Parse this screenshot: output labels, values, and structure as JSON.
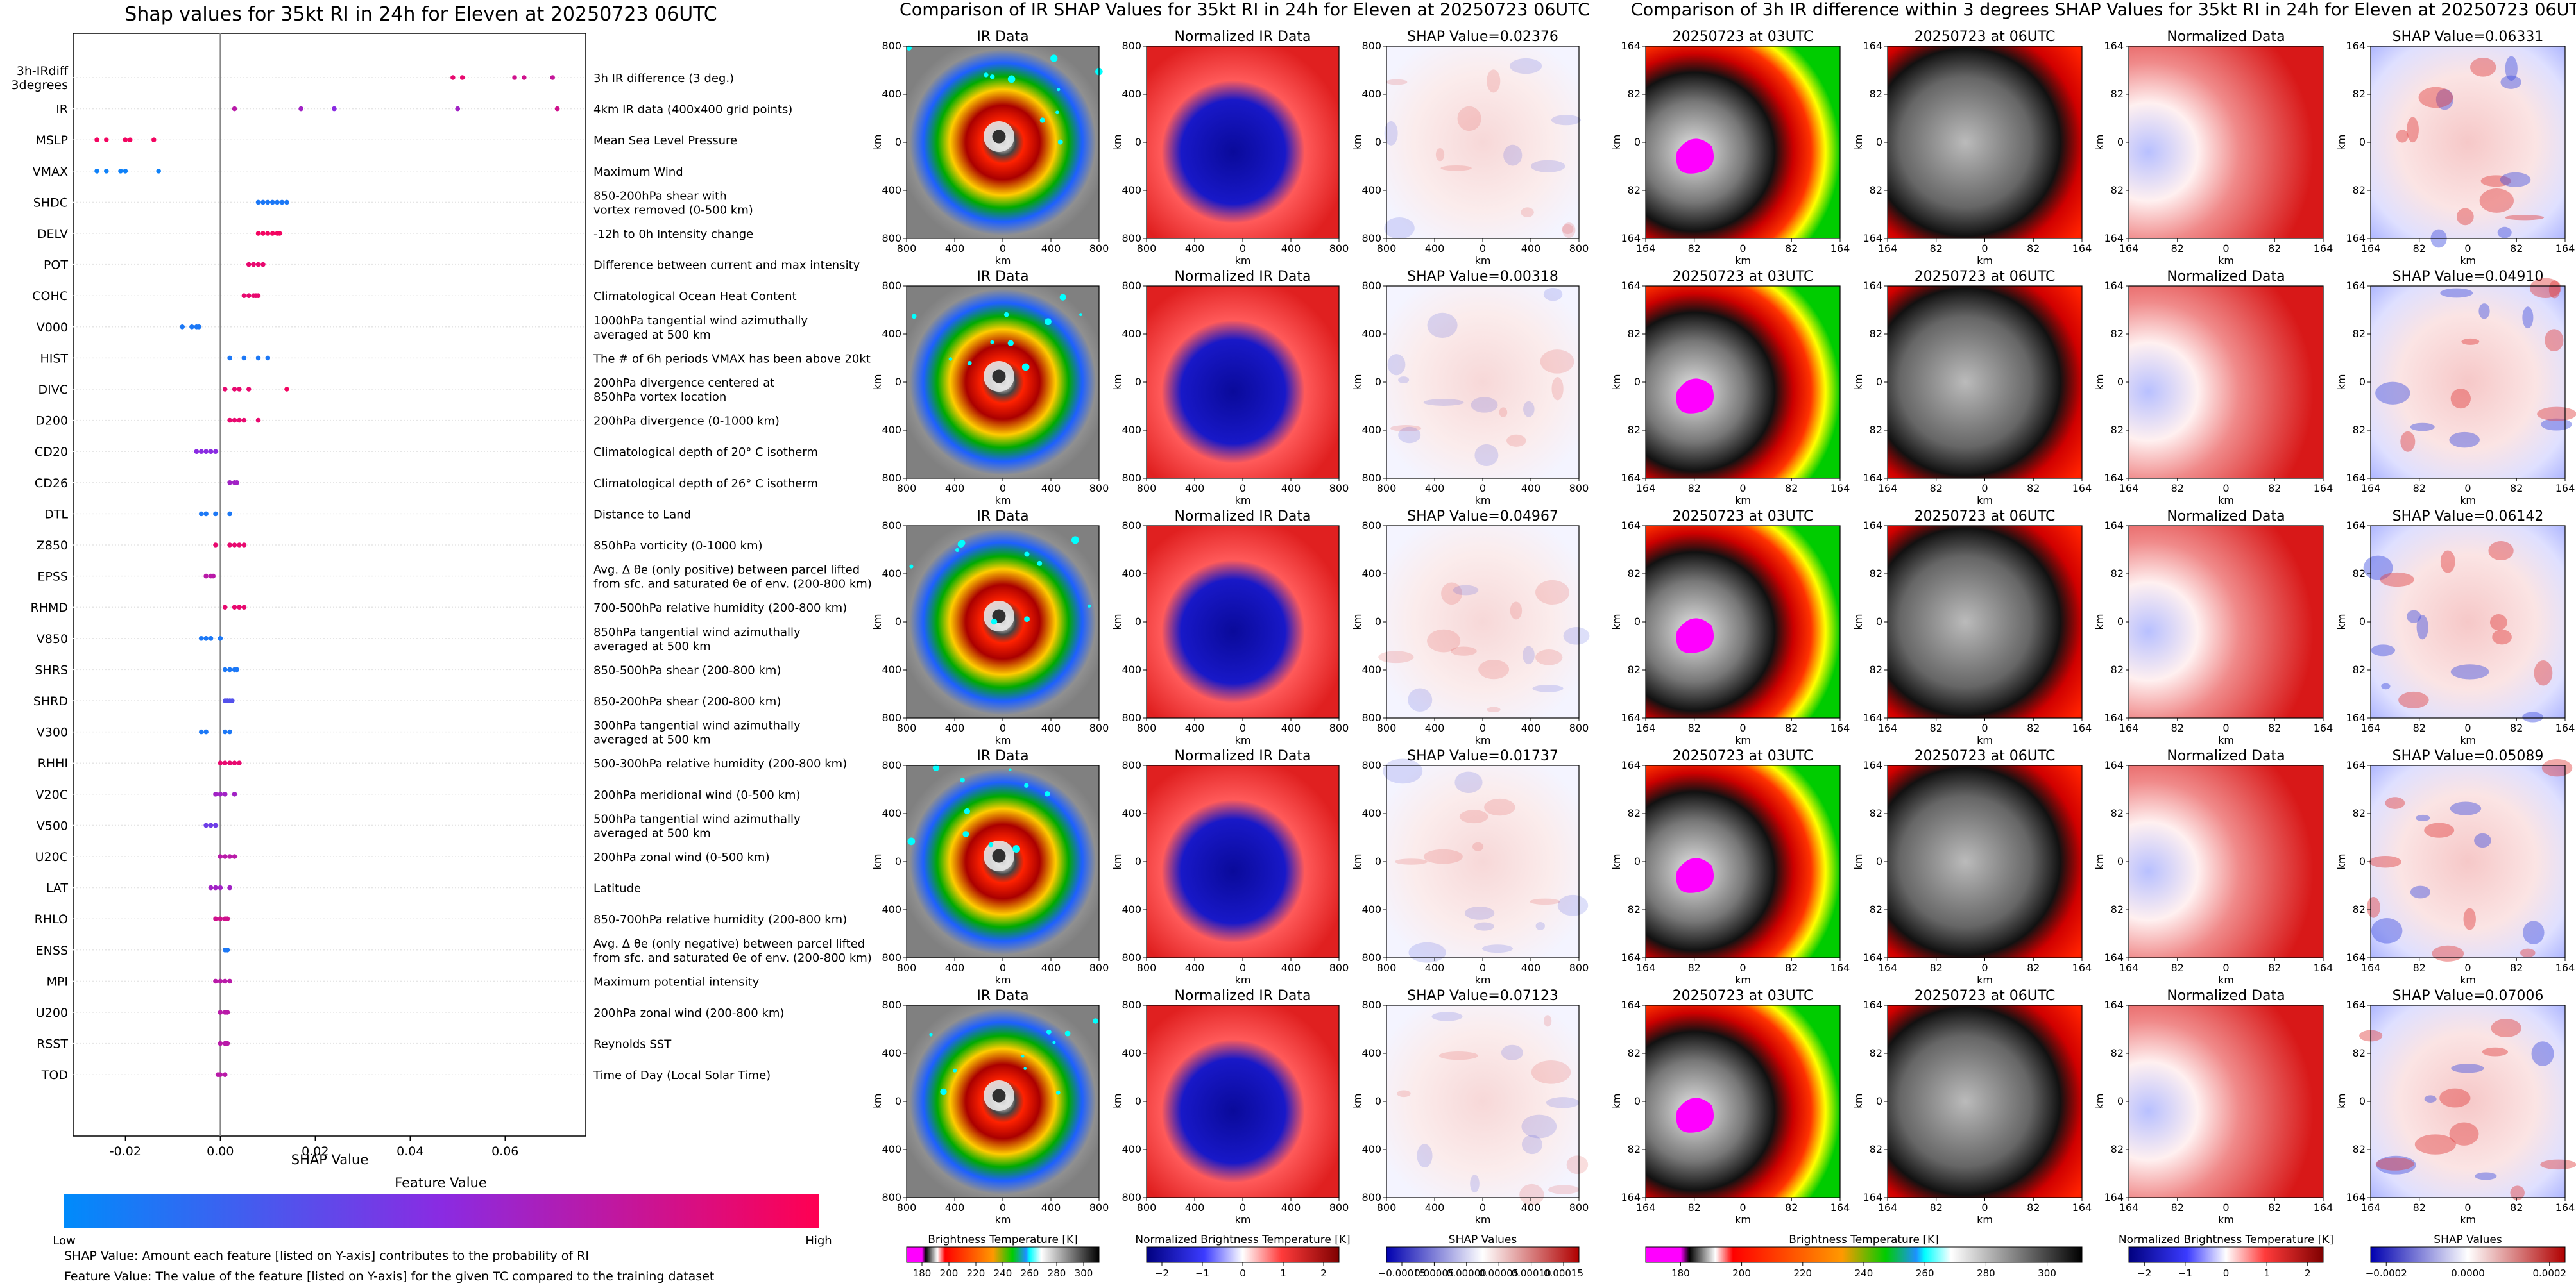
{
  "colors": {
    "low": "#008bfb",
    "high": "#ff0052",
    "mid": "#8a2be2",
    "map_white": "#ffffff",
    "map_red": "#d6201f",
    "map_blue": "#1a1ab8",
    "ir_gray": "#9a9a9a",
    "ir_magenta": "#ff00ff"
  },
  "figure_a": {
    "title": "Shap values for 35kt RI in 24h for Eleven at 20250723 06UTC",
    "xlabel": "SHAP Value",
    "colorbar_title": "Feature Value",
    "colorbar_low": "Low",
    "colorbar_high": "High",
    "note1": "SHAP Value: Amount each feature [listed on Y-axis] contributes to the probability of RI",
    "note2": "Feature Value: The value of the feature [listed on Y-axis] for the given TC compared to the training dataset"
  },
  "chart_data": {
    "type": "scatter",
    "title": "Shap values for 35kt RI in 24h for Eleven at 20250723 06UTC",
    "xlabel": "SHAP Value",
    "xlim": [
      -0.031,
      0.077
    ],
    "xticks": [
      "-0.02",
      "0.00",
      "0.02",
      "0.04",
      "0.06"
    ],
    "xtick_values": [
      -0.02,
      0.0,
      0.02,
      0.04,
      0.06
    ],
    "features": [
      {
        "code": [
          "3h-IRdiff",
          "3degrees"
        ],
        "desc": [
          "3h IR difference (3 deg.)"
        ],
        "points": [
          [
            0.049,
            0.9
          ],
          [
            0.051,
            0.9
          ],
          [
            0.062,
            0.8
          ],
          [
            0.064,
            0.8
          ],
          [
            0.07,
            0.75
          ]
        ]
      },
      {
        "code": [
          "IR"
        ],
        "desc": [
          "4km IR data (400x400 grid points)"
        ],
        "points": [
          [
            0.003,
            0.7
          ],
          [
            0.017,
            0.6
          ],
          [
            0.024,
            0.5
          ],
          [
            0.05,
            0.6
          ],
          [
            0.071,
            0.8
          ]
        ]
      },
      {
        "code": [
          "MSLP"
        ],
        "desc": [
          "Mean Sea Level Pressure"
        ],
        "points": [
          [
            -0.026,
            0.95
          ],
          [
            -0.024,
            0.95
          ],
          [
            -0.02,
            0.95
          ],
          [
            -0.019,
            0.95
          ],
          [
            -0.014,
            0.95
          ]
        ]
      },
      {
        "code": [
          "VMAX"
        ],
        "desc": [
          "Maximum Wind"
        ],
        "points": [
          [
            -0.026,
            0.05
          ],
          [
            -0.024,
            0.05
          ],
          [
            -0.021,
            0.05
          ],
          [
            -0.02,
            0.05
          ],
          [
            -0.013,
            0.05
          ]
        ]
      },
      {
        "code": [
          "SHDC"
        ],
        "desc": [
          "850-200hPa shear with",
          "vortex removed (0-500 km)"
        ],
        "points": [
          [
            0.008,
            0.1
          ],
          [
            0.009,
            0.1
          ],
          [
            0.01,
            0.1
          ],
          [
            0.011,
            0.1
          ],
          [
            0.012,
            0.1
          ],
          [
            0.013,
            0.1
          ],
          [
            0.014,
            0.1
          ]
        ]
      },
      {
        "code": [
          "DELV"
        ],
        "desc": [
          "-12h to 0h Intensity change"
        ],
        "points": [
          [
            0.008,
            0.95
          ],
          [
            0.009,
            0.95
          ],
          [
            0.01,
            0.95
          ],
          [
            0.011,
            0.95
          ],
          [
            0.012,
            0.95
          ],
          [
            0.0125,
            0.95
          ]
        ]
      },
      {
        "code": [
          "POT"
        ],
        "desc": [
          "Difference between current and max intensity"
        ],
        "points": [
          [
            0.006,
            0.9
          ],
          [
            0.007,
            0.9
          ],
          [
            0.008,
            0.9
          ],
          [
            0.009,
            0.9
          ]
        ]
      },
      {
        "code": [
          "COHC"
        ],
        "desc": [
          "Climatological Ocean Heat Content"
        ],
        "points": [
          [
            0.005,
            0.9
          ],
          [
            0.006,
            0.9
          ],
          [
            0.007,
            0.9
          ],
          [
            0.0075,
            0.9
          ],
          [
            0.008,
            0.9
          ]
        ]
      },
      {
        "code": [
          "V000"
        ],
        "desc": [
          "1000hPa tangential wind azimuthally",
          "averaged at 500 km"
        ],
        "points": [
          [
            -0.008,
            0.1
          ],
          [
            -0.006,
            0.1
          ],
          [
            -0.005,
            0.1
          ],
          [
            -0.0045,
            0.1
          ]
        ]
      },
      {
        "code": [
          "HIST"
        ],
        "desc": [
          "The # of 6h periods VMAX has been above 20kt"
        ],
        "points": [
          [
            0.002,
            0.1
          ],
          [
            0.005,
            0.1
          ],
          [
            0.008,
            0.1
          ],
          [
            0.01,
            0.1
          ]
        ]
      },
      {
        "code": [
          "DIVC"
        ],
        "desc": [
          "200hPa divergence centered at",
          "850hPa vortex location"
        ],
        "points": [
          [
            0.001,
            0.9
          ],
          [
            0.003,
            0.9
          ],
          [
            0.004,
            0.9
          ],
          [
            0.006,
            0.9
          ],
          [
            0.014,
            0.95
          ]
        ]
      },
      {
        "code": [
          "D200"
        ],
        "desc": [
          "200hPa divergence (0-1000 km)"
        ],
        "points": [
          [
            0.002,
            0.9
          ],
          [
            0.003,
            0.9
          ],
          [
            0.004,
            0.9
          ],
          [
            0.005,
            0.9
          ],
          [
            0.008,
            0.9
          ]
        ]
      },
      {
        "code": [
          "CD20"
        ],
        "desc": [
          "Climatological depth of 20° C isotherm"
        ],
        "points": [
          [
            -0.005,
            0.5
          ],
          [
            -0.004,
            0.5
          ],
          [
            -0.003,
            0.5
          ],
          [
            -0.002,
            0.5
          ],
          [
            -0.001,
            0.5
          ]
        ]
      },
      {
        "code": [
          "CD26"
        ],
        "desc": [
          "Climatological depth of 26° C isotherm"
        ],
        "points": [
          [
            0.002,
            0.6
          ],
          [
            0.003,
            0.6
          ],
          [
            0.0035,
            0.6
          ]
        ]
      },
      {
        "code": [
          "DTL"
        ],
        "desc": [
          "Distance to Land"
        ],
        "points": [
          [
            -0.004,
            0.1
          ],
          [
            -0.003,
            0.1
          ],
          [
            -0.001,
            0.1
          ],
          [
            0.002,
            0.1
          ]
        ]
      },
      {
        "code": [
          "Z850"
        ],
        "desc": [
          "850hPa vorticity (0-1000 km)"
        ],
        "points": [
          [
            -0.001,
            0.9
          ],
          [
            0.002,
            0.9
          ],
          [
            0.003,
            0.9
          ],
          [
            0.004,
            0.9
          ],
          [
            0.005,
            0.9
          ]
        ]
      },
      {
        "code": [
          "EPSS"
        ],
        "desc": [
          "Avg. Δ θe (only positive) between parcel lifted",
          "from sfc. and saturated θe of env. (200-800 km)"
        ],
        "points": [
          [
            -0.003,
            0.7
          ],
          [
            -0.002,
            0.7
          ],
          [
            -0.0015,
            0.7
          ]
        ]
      },
      {
        "code": [
          "RHMD"
        ],
        "desc": [
          "700-500hPa relative humidity (200-800 km)"
        ],
        "points": [
          [
            0.001,
            0.9
          ],
          [
            0.003,
            0.9
          ],
          [
            0.004,
            0.9
          ],
          [
            0.005,
            0.9
          ]
        ]
      },
      {
        "code": [
          "V850"
        ],
        "desc": [
          "850hPa tangential wind azimuthally",
          "averaged at 500 km"
        ],
        "points": [
          [
            -0.004,
            0.1
          ],
          [
            -0.003,
            0.1
          ],
          [
            -0.002,
            0.1
          ],
          [
            0.0,
            0.1
          ]
        ]
      },
      {
        "code": [
          "SHRS"
        ],
        "desc": [
          "850-500hPa shear (200-800 km)"
        ],
        "points": [
          [
            0.001,
            0.1
          ],
          [
            0.002,
            0.1
          ],
          [
            0.003,
            0.1
          ],
          [
            0.0035,
            0.1
          ]
        ]
      },
      {
        "code": [
          "SHRD"
        ],
        "desc": [
          "850-200hPa shear (200-800 km)"
        ],
        "points": [
          [
            0.001,
            0.3
          ],
          [
            0.0015,
            0.3
          ],
          [
            0.002,
            0.3
          ],
          [
            0.0025,
            0.3
          ]
        ]
      },
      {
        "code": [
          "V300"
        ],
        "desc": [
          "300hPa tangential wind azimuthally",
          "averaged at 500 km"
        ],
        "points": [
          [
            -0.004,
            0.1
          ],
          [
            -0.003,
            0.1
          ],
          [
            0.001,
            0.1
          ],
          [
            0.002,
            0.1
          ]
        ]
      },
      {
        "code": [
          "RHHI"
        ],
        "desc": [
          "500-300hPa relative humidity (200-800 km)"
        ],
        "points": [
          [
            0.0,
            0.9
          ],
          [
            0.001,
            0.9
          ],
          [
            0.002,
            0.9
          ],
          [
            0.003,
            0.9
          ],
          [
            0.004,
            0.9
          ]
        ]
      },
      {
        "code": [
          "V20C"
        ],
        "desc": [
          "200hPa meridional wind (0-500 km)"
        ],
        "points": [
          [
            -0.001,
            0.6
          ],
          [
            0.0,
            0.6
          ],
          [
            0.001,
            0.6
          ],
          [
            0.003,
            0.6
          ]
        ]
      },
      {
        "code": [
          "V500"
        ],
        "desc": [
          "500hPa tangential wind azimuthally",
          "averaged at 500 km"
        ],
        "points": [
          [
            -0.003,
            0.4
          ],
          [
            -0.002,
            0.4
          ],
          [
            -0.001,
            0.4
          ]
        ]
      },
      {
        "code": [
          "U20C"
        ],
        "desc": [
          "200hPa zonal wind (0-500 km)"
        ],
        "points": [
          [
            0.0,
            0.7
          ],
          [
            0.001,
            0.7
          ],
          [
            0.002,
            0.7
          ],
          [
            0.003,
            0.7
          ]
        ]
      },
      {
        "code": [
          "LAT"
        ],
        "desc": [
          "Latitude"
        ],
        "points": [
          [
            -0.002,
            0.6
          ],
          [
            -0.001,
            0.6
          ],
          [
            0.0,
            0.6
          ],
          [
            0.002,
            0.6
          ]
        ]
      },
      {
        "code": [
          "RHLO"
        ],
        "desc": [
          "850-700hPa relative humidity (200-800 km)"
        ],
        "points": [
          [
            -0.001,
            0.8
          ],
          [
            0.0,
            0.8
          ],
          [
            0.001,
            0.8
          ],
          [
            0.0015,
            0.8
          ]
        ]
      },
      {
        "code": [
          "ENSS"
        ],
        "desc": [
          "Avg. Δ θe (only negative) between parcel lifted",
          "from sfc. and saturated θe of env. (200-800 km)"
        ],
        "points": [
          [
            0.001,
            0.1
          ],
          [
            0.0015,
            0.1
          ]
        ]
      },
      {
        "code": [
          "MPI"
        ],
        "desc": [
          "Maximum potential intensity"
        ],
        "points": [
          [
            -0.001,
            0.7
          ],
          [
            0.0,
            0.7
          ],
          [
            0.001,
            0.7
          ],
          [
            0.002,
            0.7
          ]
        ]
      },
      {
        "code": [
          "U200"
        ],
        "desc": [
          "200hPa zonal wind (200-800 km)"
        ],
        "points": [
          [
            0.0,
            0.7
          ],
          [
            0.001,
            0.7
          ],
          [
            0.0015,
            0.7
          ]
        ]
      },
      {
        "code": [
          "RSST"
        ],
        "desc": [
          "Reynolds SST"
        ],
        "points": [
          [
            0.0,
            0.7
          ],
          [
            0.001,
            0.7
          ],
          [
            0.0015,
            0.7
          ]
        ]
      },
      {
        "code": [
          "TOD"
        ],
        "desc": [
          "Time of Day (Local Solar Time)"
        ],
        "points": [
          [
            -0.0005,
            0.7
          ],
          [
            0.0,
            0.7
          ],
          [
            0.001,
            0.7
          ]
        ]
      }
    ]
  },
  "figure_b": {
    "title": "Comparison of IR SHAP Values for 35kt RI in 24h for Eleven at 20250723 06UTC",
    "col_titles": [
      "IR Data",
      "Normalized IR Data"
    ],
    "shap_titles": [
      "SHAP Value=0.02376",
      "SHAP Value=0.00318",
      "SHAP Value=0.04967",
      "SHAP Value=0.01737",
      "SHAP Value=0.07123"
    ],
    "axis_label": "km",
    "x_ticks": [
      "800",
      "400",
      "0",
      "400",
      "800"
    ],
    "y_ticks": [
      "800",
      "400",
      "0",
      "400",
      "800"
    ],
    "colorbars": [
      {
        "title": "Brightness Temperature [K]",
        "ticks": [
          "180",
          "200",
          "220",
          "240",
          "260",
          "280",
          "300"
        ]
      },
      {
        "title": "Normalized Brightness Temperature [K]",
        "ticks": [
          "−2",
          "−1",
          "0",
          "1",
          "2"
        ]
      },
      {
        "title": "SHAP Values",
        "ticks": [
          "−0.00015",
          "0.00005",
          "0.00000",
          "0.00005",
          "0.00010",
          "0.00015"
        ]
      }
    ]
  },
  "figure_c": {
    "title": "Comparison of 3h IR difference within 3 degrees SHAP Values for 35kt RI in 24h for Eleven at 20250723 06UTC",
    "col_titles": [
      "20250723 at 03UTC",
      "20250723 at 06UTC",
      "Normalized Data"
    ],
    "shap_titles": [
      "SHAP Value=0.06331",
      "SHAP Value=0.04910",
      "SHAP Value=0.06142",
      "SHAP Value=0.05089",
      "SHAP Value=0.07006"
    ],
    "axis_label": "km",
    "x_ticks": [
      "164",
      "82",
      "0",
      "82",
      "164"
    ],
    "y_ticks": [
      "164",
      "82",
      "0",
      "82",
      "164"
    ],
    "colorbars": [
      {
        "title": "Brightness Temperature [K]",
        "ticks": [
          "180",
          "200",
          "220",
          "240",
          "260",
          "280",
          "300"
        ]
      },
      {
        "title": "Normalized Brightness Temperature [K]",
        "ticks": [
          "−2",
          "−1",
          "0",
          "1",
          "2"
        ]
      },
      {
        "title": "SHAP Values",
        "ticks": [
          "−0.0002",
          "0.0000",
          "0.0002"
        ]
      }
    ]
  }
}
